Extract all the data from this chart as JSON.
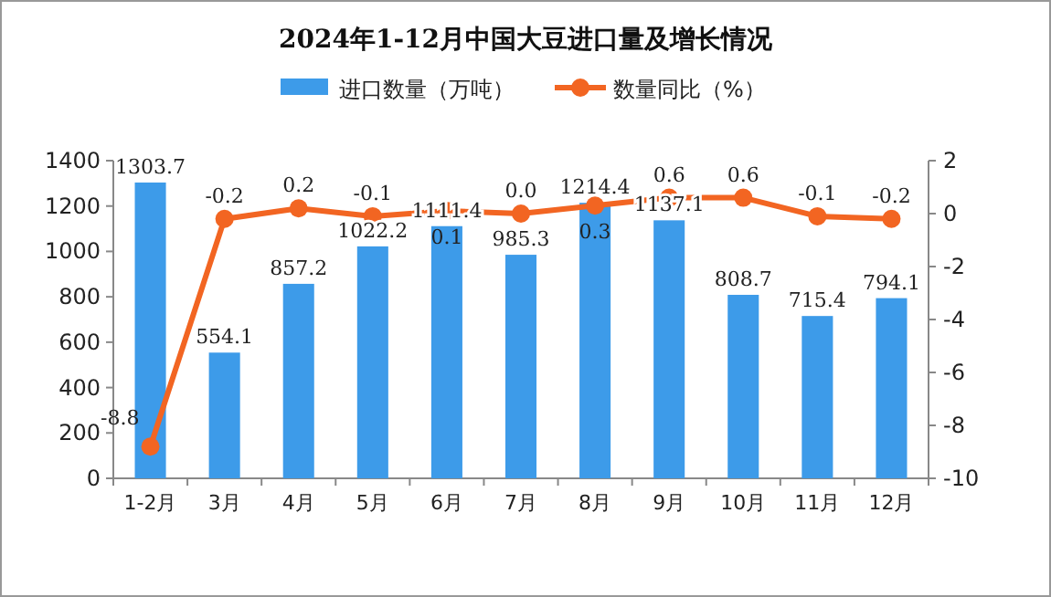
{
  "chart_data": {
    "type": "bar",
    "title": "2024年1-12月中国大豆进口量及增长情况",
    "categories": [
      "1-2月",
      "3月",
      "4月",
      "5月",
      "6月",
      "7月",
      "8月",
      "9月",
      "10月",
      "11月",
      "12月"
    ],
    "series": [
      {
        "name": "进口数量（万吨）",
        "color": "#3d9be9",
        "values": [
          1303.7,
          554.1,
          857.2,
          1022.2,
          1111.4,
          985.3,
          1214.4,
          1137.1,
          808.7,
          715.4,
          794.1
        ]
      },
      {
        "name": "数量同比（%）",
        "type": "line",
        "axis": "y2",
        "color": "#f26522",
        "marker": "circle",
        "values": [
          -8.8,
          -0.2,
          0.2,
          -0.1,
          0.1,
          0.0,
          0.3,
          0.6,
          0.6,
          -0.1,
          -0.2
        ],
        "value_labels": [
          "-8.8",
          "-0.2",
          "0.2",
          "-0.1",
          "0.1",
          "0.0",
          "0.3",
          "0.6",
          "0.6",
          "-0.1",
          "-0.2"
        ]
      }
    ],
    "ylim": [
      0,
      1400
    ],
    "yticks": [
      0,
      200,
      400,
      600,
      800,
      1000,
      1200,
      1400
    ],
    "y2lim": [
      -10,
      2
    ],
    "y2ticks": [
      -10,
      -8,
      -6,
      -4,
      -2,
      0,
      2
    ],
    "data_labels": true,
    "legend": "top",
    "grid": false
  }
}
